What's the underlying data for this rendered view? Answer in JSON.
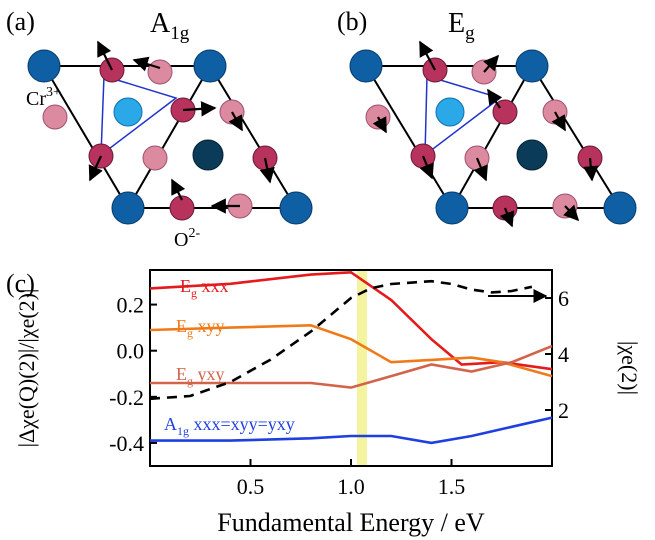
{
  "panels": {
    "a": {
      "label": "(a)",
      "mode_main": "A",
      "mode_sub": "1g"
    },
    "b": {
      "label": "(b)",
      "mode_main": "E",
      "mode_sub": "g"
    },
    "c": {
      "label": "(c)"
    }
  },
  "ions": {
    "cr_main": "Cr",
    "cr_sup": "3+",
    "o_main": "O",
    "o_sup": "2-"
  },
  "colors": {
    "cr_atom": "#0e5fa3",
    "cr_center_light": "#2aa8e8",
    "cr_center_dark": "#0a3c5a",
    "o_dark": "#b8325e",
    "o_light": "#dc8aa0",
    "inner_triangle": "#2233cc",
    "highlight_band": "#f3f3a0"
  },
  "chart_data": {
    "type": "line",
    "xlabel": "Fundamental Energy / eV",
    "ylabel_left": "|Δχe(Q)(2)|/|χe(2)|",
    "ylabel_right": "|χe(2)|",
    "xlim": [
      0.0,
      2.0
    ],
    "ylim_left": [
      -0.5,
      0.35
    ],
    "ylim_right": [
      0,
      7
    ],
    "x_ticks": [
      "0.5",
      "1.0",
      "1.5"
    ],
    "y_ticks_left": [
      "0.2",
      "0.0",
      "-0.2",
      "-0.4"
    ],
    "y_ticks_right": [
      "2",
      "4",
      "6"
    ],
    "highlight_band_x": [
      1.03,
      1.08
    ],
    "series": [
      {
        "name": "Eg xxx",
        "label_main": "E",
        "label_sub": "g",
        "label_rest": " xxx",
        "color": "#e41a1c",
        "axis": "left",
        "x": [
          0.0,
          0.4,
          0.8,
          1.0,
          1.2,
          1.4,
          1.55,
          1.75,
          2.0
        ],
        "y": [
          0.27,
          0.29,
          0.33,
          0.34,
          0.22,
          0.05,
          -0.06,
          -0.05,
          -0.08
        ]
      },
      {
        "name": "Eg xyy",
        "label_main": "E",
        "label_sub": "g",
        "label_rest": " xyy",
        "color": "#f07a1a",
        "axis": "left",
        "x": [
          0.0,
          0.4,
          0.8,
          1.0,
          1.2,
          1.4,
          1.6,
          1.75,
          2.0
        ],
        "y": [
          0.09,
          0.1,
          0.11,
          0.05,
          -0.05,
          -0.04,
          -0.03,
          -0.05,
          -0.11
        ]
      },
      {
        "name": "Eg yxy",
        "label_main": "E",
        "label_sub": "g",
        "label_rest": " yxy",
        "color": "#d2644b",
        "axis": "left",
        "x": [
          0.0,
          0.4,
          0.8,
          1.0,
          1.2,
          1.4,
          1.6,
          1.8,
          2.0
        ],
        "y": [
          -0.14,
          -0.14,
          -0.14,
          -0.16,
          -0.11,
          -0.06,
          -0.09,
          -0.05,
          0.02
        ]
      },
      {
        "name": "A1g xxx=xyy=yxy",
        "label_main": "A",
        "label_sub": "1g",
        "label_rest": " xxx=xyy=yxy",
        "color": "#1f3fe0",
        "axis": "left",
        "x": [
          0.0,
          0.4,
          0.8,
          1.0,
          1.2,
          1.4,
          1.6,
          1.8,
          2.0
        ],
        "y": [
          -0.39,
          -0.39,
          -0.38,
          -0.37,
          -0.37,
          -0.4,
          -0.37,
          -0.33,
          -0.29
        ]
      },
      {
        "name": "|χe(2)|",
        "color": "#000000",
        "axis": "right",
        "dash": true,
        "x": [
          0.0,
          0.2,
          0.4,
          0.6,
          0.8,
          1.0,
          1.1,
          1.2,
          1.4,
          1.5,
          1.6,
          1.7,
          1.8,
          1.9
        ],
        "y": [
          2.4,
          2.5,
          3.0,
          3.8,
          4.8,
          6.0,
          6.35,
          6.5,
          6.6,
          6.5,
          6.3,
          6.2,
          6.25,
          6.4
        ]
      }
    ]
  }
}
